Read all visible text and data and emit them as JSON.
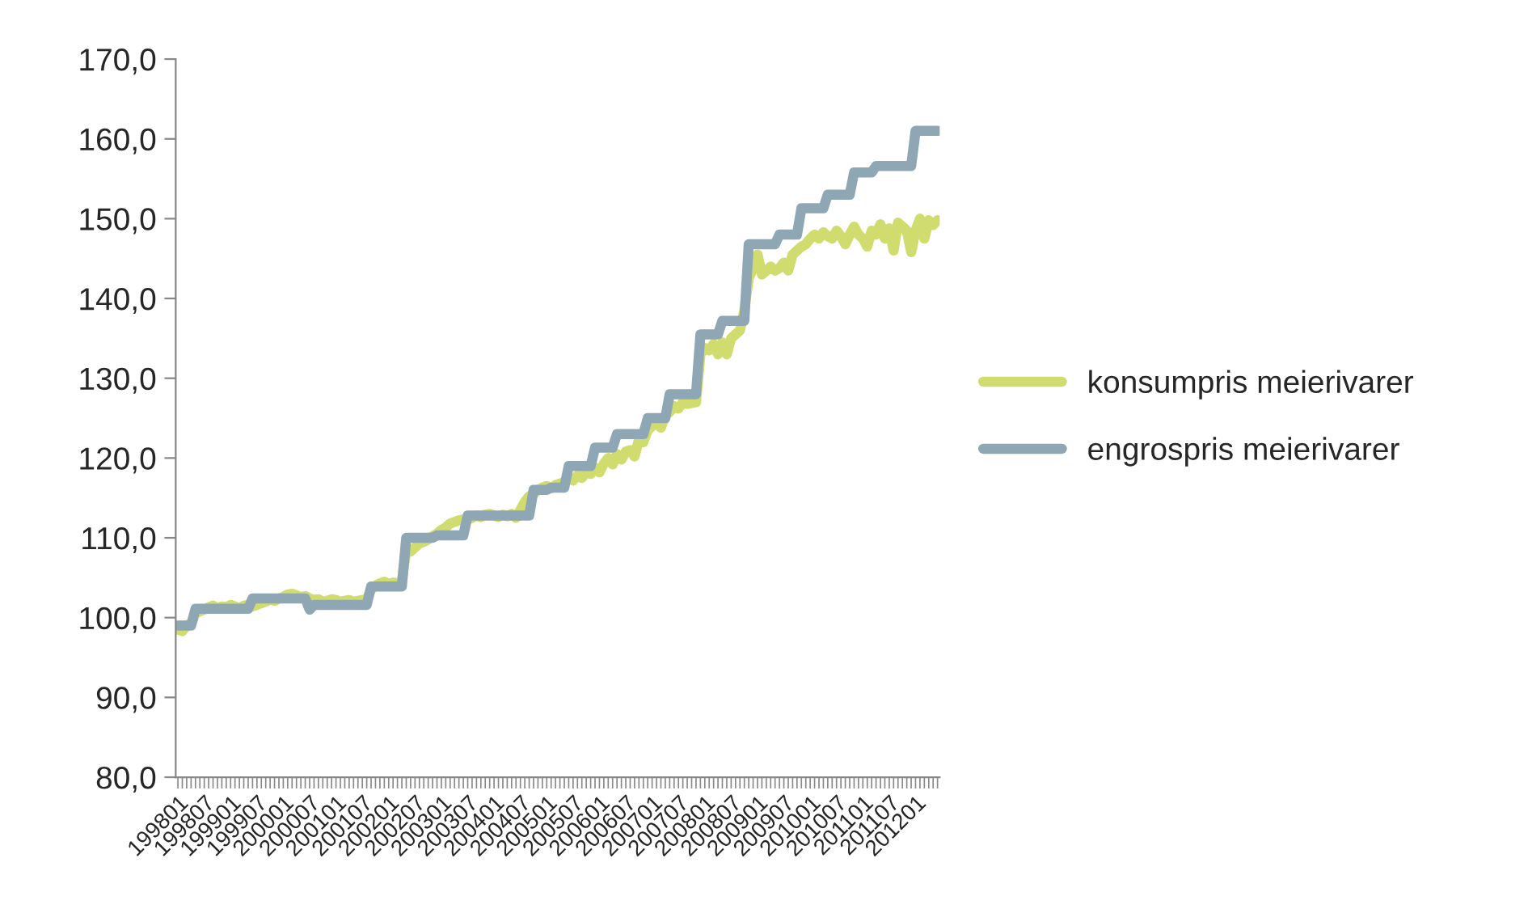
{
  "chart_data": {
    "type": "line",
    "categories": [
      "199801",
      null,
      null,
      null,
      null,
      null,
      "199807",
      null,
      null,
      null,
      null,
      null,
      "199901",
      null,
      null,
      null,
      null,
      null,
      "199907",
      null,
      null,
      null,
      null,
      null,
      "200001",
      null,
      null,
      null,
      null,
      null,
      "200007",
      null,
      null,
      null,
      null,
      null,
      "200101",
      null,
      null,
      null,
      null,
      null,
      "200107",
      null,
      null,
      null,
      null,
      null,
      "200201",
      null,
      null,
      null,
      null,
      null,
      "200207",
      null,
      null,
      null,
      null,
      null,
      "200301",
      null,
      null,
      null,
      null,
      null,
      "200307",
      null,
      null,
      null,
      null,
      null,
      "200401",
      null,
      null,
      null,
      null,
      null,
      "200407",
      null,
      null,
      null,
      null,
      null,
      "200501",
      null,
      null,
      null,
      null,
      null,
      "200507",
      null,
      null,
      null,
      null,
      null,
      "200601",
      null,
      null,
      null,
      null,
      null,
      "200607",
      null,
      null,
      null,
      null,
      null,
      "200701",
      null,
      null,
      null,
      null,
      null,
      "200707",
      null,
      null,
      null,
      null,
      null,
      "200801",
      null,
      null,
      null,
      null,
      null,
      "200807",
      null,
      null,
      null,
      null,
      null,
      "200901",
      null,
      null,
      null,
      null,
      null,
      "200907",
      null,
      null,
      null,
      null,
      null,
      "201001",
      null,
      null,
      null,
      null,
      null,
      "201007",
      null,
      null,
      null,
      null,
      null,
      "201101",
      null,
      null,
      null,
      null,
      null,
      "201107",
      null,
      null,
      null,
      null,
      null,
      "201201",
      null,
      null,
      null,
      null,
      null
    ],
    "series": [
      {
        "name": "konsumpris meierivarer",
        "color": "#d0dc6e",
        "values": [
          98.5,
          98.3,
          99.0,
          99.3,
          100.5,
          100.8,
          101.0,
          101.3,
          101.5,
          101.2,
          101.4,
          101.3,
          101.6,
          101.4,
          101.2,
          101.5,
          101.6,
          101.4,
          101.6,
          101.8,
          102.0,
          102.3,
          102.1,
          102.4,
          102.6,
          102.9,
          103.0,
          102.8,
          102.6,
          102.7,
          102.4,
          102.2,
          102.3,
          102.0,
          102.1,
          102.3,
          102.2,
          102.0,
          102.1,
          102.2,
          102.0,
          102.1,
          102.2,
          102.3,
          103.5,
          104.0,
          104.3,
          104.5,
          104.2,
          104.4,
          104.3,
          104.6,
          108.5,
          108.3,
          108.8,
          109.3,
          109.5,
          109.8,
          110.2,
          110.5,
          111.0,
          111.3,
          111.8,
          112.0,
          112.2,
          112.3,
          112.3,
          112.5,
          112.8,
          112.6,
          112.9,
          113.0,
          112.8,
          112.6,
          112.9,
          112.7,
          113.0,
          112.5,
          113.5,
          114.5,
          115.2,
          115.5,
          116.0,
          116.3,
          116.5,
          116.2,
          116.6,
          116.8,
          117.0,
          117.5,
          117.2,
          117.8,
          117.5,
          118.3,
          118.0,
          118.8,
          118.2,
          119.3,
          120.0,
          119.2,
          120.5,
          119.8,
          120.8,
          121.0,
          120.2,
          122.3,
          122.0,
          123.5,
          124.0,
          124.5,
          123.8,
          125.3,
          125.8,
          126.5,
          126.2,
          127.0,
          126.8,
          126.9,
          127.0,
          133.0,
          133.8,
          133.5,
          134.3,
          133.0,
          134.5,
          133.0,
          135.0,
          135.5,
          136.0,
          138.5,
          142.5,
          143.8,
          145.5,
          143.0,
          143.5,
          144.0,
          143.5,
          143.8,
          144.5,
          143.5,
          145.5,
          146.0,
          146.5,
          146.8,
          147.5,
          148.0,
          147.5,
          148.3,
          147.8,
          147.5,
          148.5,
          147.8,
          146.8,
          148.0,
          149.0,
          148.0,
          147.5,
          146.5,
          148.5,
          148.0,
          149.3,
          147.5,
          148.8,
          146.0,
          149.5,
          149.0,
          148.5,
          145.8,
          148.5,
          150.0,
          147.5,
          149.8,
          149.2,
          149.8
        ]
      },
      {
        "name": "engrospris meierivarer",
        "color": "#8fa7b4",
        "values": [
          99.0,
          99.0,
          99.0,
          99.0,
          101.1,
          101.1,
          101.1,
          101.1,
          101.1,
          101.1,
          101.1,
          101.1,
          101.1,
          101.1,
          101.1,
          101.1,
          101.1,
          102.4,
          102.4,
          102.4,
          102.4,
          102.4,
          102.4,
          102.4,
          102.4,
          102.4,
          102.4,
          102.4,
          102.4,
          102.4,
          101.0,
          101.6,
          101.6,
          101.6,
          101.6,
          101.6,
          101.6,
          101.6,
          101.6,
          101.6,
          101.6,
          101.6,
          101.6,
          101.6,
          103.9,
          103.9,
          103.9,
          103.9,
          103.9,
          103.9,
          103.9,
          103.9,
          110.0,
          110.0,
          110.0,
          110.0,
          110.0,
          110.0,
          110.0,
          110.3,
          110.3,
          110.3,
          110.3,
          110.3,
          110.3,
          110.3,
          112.8,
          112.8,
          112.8,
          112.8,
          112.8,
          112.8,
          112.8,
          112.8,
          112.8,
          112.8,
          112.8,
          112.8,
          112.8,
          112.8,
          112.8,
          116.0,
          116.0,
          116.0,
          116.0,
          116.3,
          116.3,
          116.3,
          116.3,
          119.0,
          119.0,
          119.0,
          119.0,
          119.0,
          119.0,
          121.3,
          121.3,
          121.3,
          121.3,
          121.3,
          123.0,
          123.0,
          123.0,
          123.0,
          123.0,
          123.0,
          123.0,
          125.0,
          125.0,
          125.0,
          125.0,
          125.0,
          128.0,
          128.0,
          128.0,
          128.0,
          128.0,
          128.0,
          128.0,
          135.5,
          135.5,
          135.5,
          135.5,
          135.5,
          137.2,
          137.2,
          137.2,
          137.2,
          137.2,
          137.2,
          146.8,
          146.8,
          146.8,
          146.8,
          146.8,
          146.8,
          146.8,
          148.0,
          148.0,
          148.0,
          148.0,
          148.0,
          151.3,
          151.3,
          151.3,
          151.3,
          151.3,
          151.3,
          153.0,
          153.0,
          153.0,
          153.0,
          153.0,
          153.0,
          155.8,
          155.8,
          155.8,
          155.8,
          155.8,
          156.6,
          156.6,
          156.6,
          156.6,
          156.6,
          156.6,
          156.6,
          156.6,
          156.6,
          161.0,
          161.0,
          161.0,
          161.0,
          161.0,
          161.0
        ]
      }
    ],
    "ylim": [
      80,
      170
    ],
    "yticks": [
      {
        "value": 80,
        "label": "80,0"
      },
      {
        "value": 90,
        "label": "90,0"
      },
      {
        "value": 100,
        "label": "100,0"
      },
      {
        "value": 110,
        "label": "110,0"
      },
      {
        "value": 120,
        "label": "120,0"
      },
      {
        "value": 130,
        "label": "130,0"
      },
      {
        "value": 140,
        "label": "140,0"
      },
      {
        "value": 150,
        "label": "150,0"
      },
      {
        "value": 160,
        "label": "160,0"
      },
      {
        "value": 170,
        "label": "170,0"
      }
    ],
    "grid": false,
    "legend": "right",
    "marker": "none",
    "line_style": "solid"
  }
}
